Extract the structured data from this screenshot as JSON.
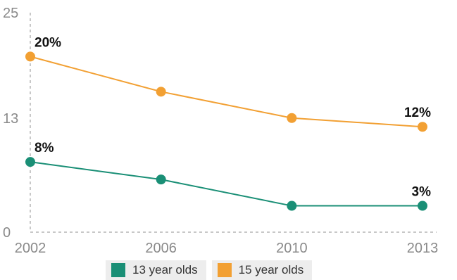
{
  "chart_data": {
    "type": "line",
    "categories": [
      "2002",
      "2006",
      "2010",
      "2013"
    ],
    "ylim": [
      0,
      25
    ],
    "yticks": [
      "0",
      "13",
      "25"
    ],
    "grid": false,
    "legend_position": "bottom",
    "series": [
      {
        "name": "13 year olds",
        "color": "#1a8f76",
        "values": [
          8,
          6,
          3,
          3
        ],
        "labels": [
          "8%",
          "",
          "",
          "3%"
        ]
      },
      {
        "name": "15 year olds",
        "color": "#f2a033",
        "values": [
          20,
          16,
          13,
          12
        ],
        "labels": [
          "20%",
          "",
          "",
          "12%"
        ]
      }
    ]
  }
}
